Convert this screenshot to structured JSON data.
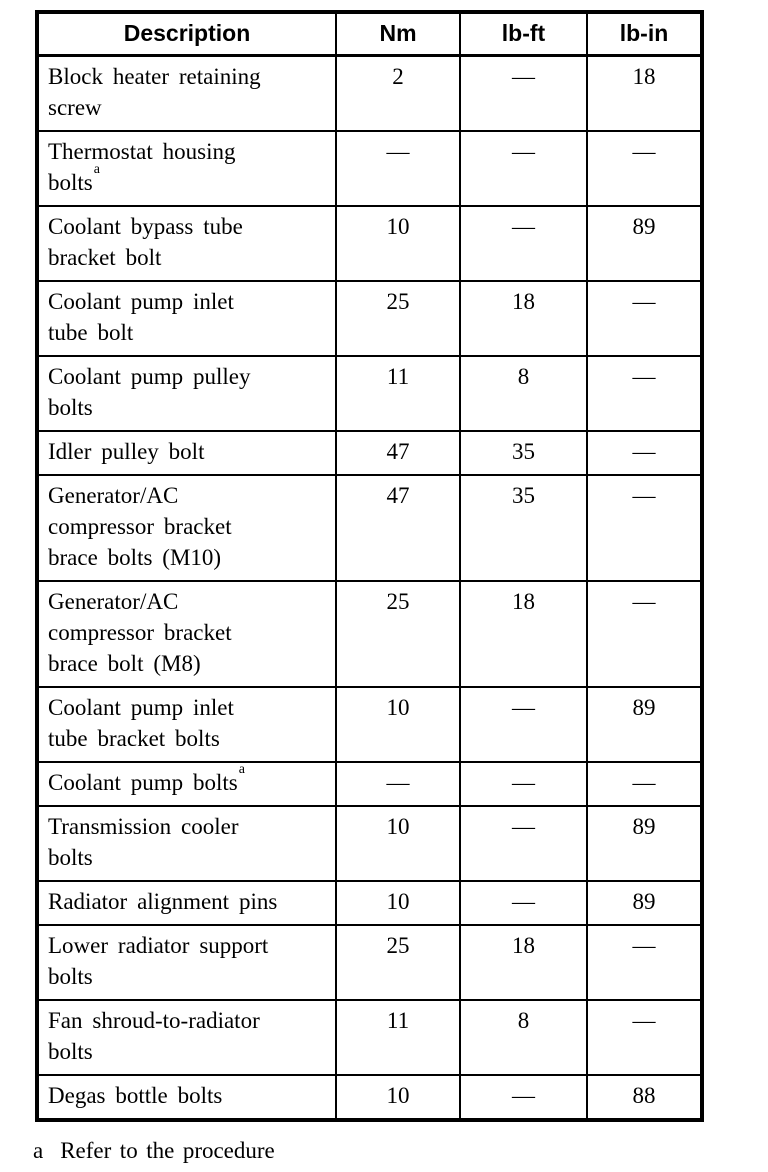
{
  "table": {
    "headers": [
      "Description",
      "Nm",
      "lb-ft",
      "lb-in"
    ],
    "rows": [
      {
        "description": "Block heater retaining\nscrew",
        "sup": "",
        "nm": "2",
        "lbft": "—",
        "lbin": "18"
      },
      {
        "description": "Thermostat housing\nbolts",
        "sup": "a",
        "nm": "—",
        "lbft": "—",
        "lbin": "—"
      },
      {
        "description": "Coolant bypass tube\nbracket bolt",
        "sup": "",
        "nm": "10",
        "lbft": "—",
        "lbin": "89"
      },
      {
        "description": "Coolant pump inlet\ntube bolt",
        "sup": "",
        "nm": "25",
        "lbft": "18",
        "lbin": "—"
      },
      {
        "description": "Coolant pump pulley\nbolts",
        "sup": "",
        "nm": "11",
        "lbft": "8",
        "lbin": "—"
      },
      {
        "description": "Idler pulley bolt",
        "sup": "",
        "nm": "47",
        "lbft": "35",
        "lbin": "—"
      },
      {
        "description": "Generator/AC\ncompressor bracket\nbrace bolts (M10)",
        "sup": "",
        "nm": "47",
        "lbft": "35",
        "lbin": "—"
      },
      {
        "description": "Generator/AC\ncompressor bracket\nbrace bolt (M8)",
        "sup": "",
        "nm": "25",
        "lbft": "18",
        "lbin": "—"
      },
      {
        "description": "Coolant pump inlet\ntube bracket bolts",
        "sup": "",
        "nm": "10",
        "lbft": "—",
        "lbin": "89"
      },
      {
        "description": "Coolant pump bolts",
        "sup": "a",
        "nm": "—",
        "lbft": "—",
        "lbin": "—"
      },
      {
        "description": "Transmission cooler\nbolts",
        "sup": "",
        "nm": "10",
        "lbft": "—",
        "lbin": "89"
      },
      {
        "description": "Radiator alignment pins",
        "sup": "",
        "nm": "10",
        "lbft": "—",
        "lbin": "89"
      },
      {
        "description": "Lower radiator support\nbolts",
        "sup": "",
        "nm": "25",
        "lbft": "18",
        "lbin": "—"
      },
      {
        "description": "Fan shroud-to-radiator\nbolts",
        "sup": "",
        "nm": "11",
        "lbft": "8",
        "lbin": "—"
      },
      {
        "description": "Degas bottle bolts",
        "sup": "",
        "nm": "10",
        "lbft": "—",
        "lbin": "88"
      }
    ]
  },
  "footnote": {
    "marker": "a",
    "text": "Refer to the procedure"
  },
  "colors": {
    "ink": "#000000",
    "paper": "#ffffff"
  }
}
